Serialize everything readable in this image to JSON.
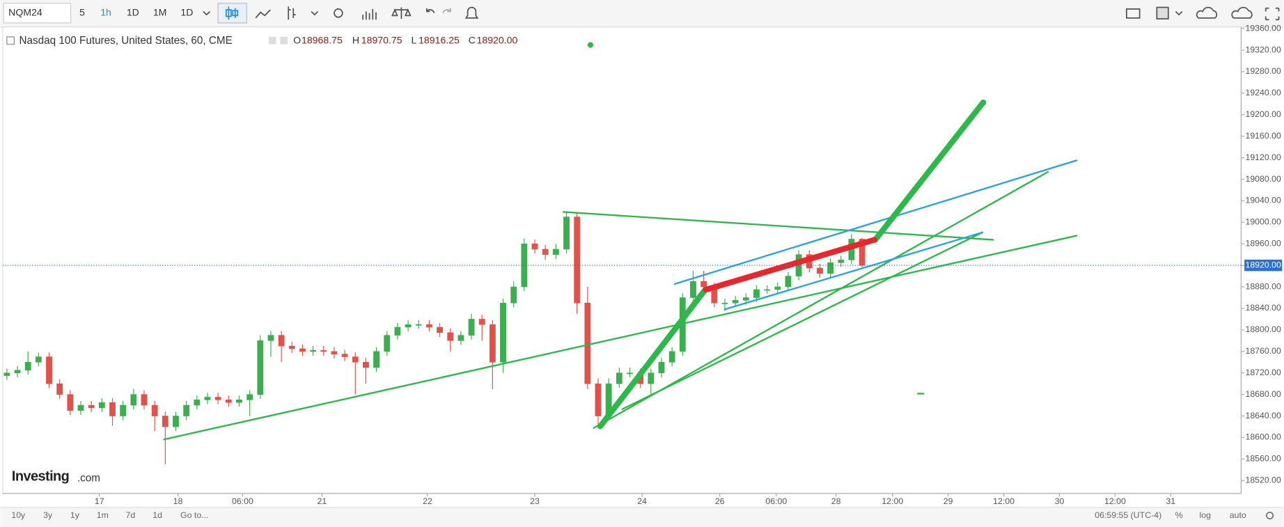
{
  "toolbar": {
    "symbol": "NQM24",
    "interval_buttons": [
      "5",
      "1h",
      "1D",
      "1M",
      "1D"
    ]
  },
  "legend": {
    "title": "Nasdaq 100 Futures, United States, 60, CME",
    "open_label": "O",
    "open": "18968.75",
    "high_label": "H",
    "high": "18970.75",
    "low_label": "L",
    "low": "18916.25",
    "close_label": "C",
    "close": "18920.00"
  },
  "brand": {
    "name": "Investing",
    "suffix": ".com"
  },
  "bottom_bar": {
    "ranges": [
      "10y",
      "3y",
      "1y",
      "1m",
      "7d",
      "1d"
    ],
    "goto": "Go to...",
    "clock": "06:59:55 (UTC-4)",
    "percent": "%",
    "log": "log",
    "auto": "auto"
  },
  "chart_data": {
    "type": "candlestick",
    "up_color": "#3cae4f",
    "down_color": "#e0534a",
    "open": [
      18715,
      18720,
      18725,
      18740,
      18750,
      18700,
      18680,
      18650,
      18660,
      18655,
      18665,
      18640,
      18660,
      18680,
      18660,
      18640,
      18620,
      18640,
      18660,
      18670,
      18675,
      18670,
      18665,
      18670,
      18680,
      18780,
      18790,
      18770,
      18765,
      18760,
      18762,
      18760,
      18755,
      18750,
      18740,
      18730,
      18760,
      18790,
      18805,
      18810,
      18810,
      18805,
      18795,
      18780,
      18790,
      18820,
      18810,
      18740,
      18850,
      18880,
      18960,
      18950,
      18940,
      18950,
      19010,
      18850,
      18700,
      18640,
      18700,
      18720,
      18720,
      18700,
      18720,
      18740,
      18760,
      18860,
      18890,
      18880,
      18850,
      18850,
      18855,
      18860,
      18875,
      18875,
      18880,
      18900,
      18940,
      18915,
      18905,
      18925,
      18930,
      18968.75
    ],
    "high": [
      18728,
      18733,
      18760,
      18758,
      18758,
      18708,
      18688,
      18668,
      18668,
      18673,
      18673,
      18668,
      18690,
      18688,
      18668,
      18648,
      18648,
      18668,
      18678,
      18683,
      18683,
      18678,
      18678,
      18688,
      18790,
      18798,
      18798,
      18778,
      18773,
      18770,
      18770,
      18768,
      18763,
      18758,
      18748,
      18768,
      18798,
      18813,
      18818,
      18818,
      18818,
      18813,
      18803,
      18798,
      18830,
      18828,
      18818,
      18858,
      18890,
      18970,
      18968,
      18958,
      18960,
      19020,
      19018,
      18880,
      18710,
      18710,
      18730,
      18730,
      18728,
      18728,
      18748,
      18768,
      18868,
      18910,
      18910,
      18888,
      18858,
      18863,
      18868,
      18883,
      18883,
      18888,
      18908,
      18948,
      18948,
      18923,
      18933,
      18938,
      18978,
      18970.75
    ],
    "low": [
      18707,
      18712,
      18717,
      18732,
      18692,
      18672,
      18642,
      18642,
      18647,
      18647,
      18622,
      18632,
      18652,
      18652,
      18612,
      18550,
      18612,
      18632,
      18652,
      18662,
      18662,
      18657,
      18657,
      18640,
      18672,
      18750,
      18740,
      18757,
      18752,
      18752,
      18752,
      18747,
      18742,
      18680,
      18700,
      18722,
      18752,
      18782,
      18797,
      18802,
      18797,
      18787,
      18760,
      18772,
      18782,
      18780,
      18690,
      18720,
      18842,
      18872,
      18942,
      18930,
      18932,
      18942,
      18830,
      18690,
      18620,
      18632,
      18692,
      18712,
      18692,
      18680,
      18712,
      18732,
      18752,
      18852,
      18872,
      18842,
      18835,
      18842,
      18847,
      18852,
      18867,
      18867,
      18872,
      18892,
      18907,
      18897,
      18897,
      18917,
      18922,
      18916.25
    ],
    "close": [
      18720,
      18725,
      18740,
      18750,
      18700,
      18680,
      18650,
      18660,
      18655,
      18665,
      18640,
      18660,
      18680,
      18660,
      18640,
      18620,
      18640,
      18660,
      18670,
      18675,
      18670,
      18665,
      18670,
      18680,
      18780,
      18790,
      18770,
      18765,
      18760,
      18762,
      18760,
      18755,
      18750,
      18740,
      18730,
      18760,
      18790,
      18805,
      18810,
      18810,
      18805,
      18795,
      18780,
      18790,
      18820,
      18810,
      18740,
      18850,
      18880,
      18960,
      18950,
      18940,
      18950,
      19010,
      18850,
      18700,
      18640,
      18700,
      18720,
      18720,
      18700,
      18720,
      18740,
      18760,
      18860,
      18890,
      18880,
      18850,
      18850,
      18855,
      18860,
      18875,
      18875,
      18880,
      18900,
      18940,
      18915,
      18905,
      18925,
      18930,
      18968.75,
      18920
    ],
    "xlim": [
      -0.39,
      116.9
    ],
    "xticks": [
      {
        "value": 8.76,
        "label": "17"
      },
      {
        "value": 16.2,
        "label": "18"
      },
      {
        "value": 22.33,
        "label": "06:00"
      },
      {
        "value": 29.84,
        "label": "21"
      },
      {
        "value": 39.84,
        "label": "22"
      },
      {
        "value": 50,
        "label": "23"
      },
      {
        "value": 60.16,
        "label": "24"
      },
      {
        "value": 67.52,
        "label": "26"
      },
      {
        "value": 72.87,
        "label": "06:00"
      },
      {
        "value": 78.53,
        "label": "28"
      },
      {
        "value": 83.88,
        "label": "12:00"
      },
      {
        "value": 89.15,
        "label": "29"
      },
      {
        "value": 94.42,
        "label": "12:00"
      },
      {
        "value": 99.69,
        "label": "30"
      },
      {
        "value": 104.96,
        "label": "12:00"
      },
      {
        "value": 110.23,
        "label": "31"
      }
    ],
    "ylim": [
      18496,
      19363
    ],
    "yticks": [
      {
        "value": 18520,
        "label": "18520.00"
      },
      {
        "value": 18560,
        "label": "18560.00"
      },
      {
        "value": 18600,
        "label": "18600.00"
      },
      {
        "value": 18640,
        "label": "18640.00"
      },
      {
        "value": 18680,
        "label": "18680.00"
      },
      {
        "value": 18720,
        "label": "18720.00"
      },
      {
        "value": 18760,
        "label": "18760.00"
      },
      {
        "value": 18800,
        "label": "18800.00"
      },
      {
        "value": 18840,
        "label": "18840.00"
      },
      {
        "value": 18880,
        "label": "18880.00"
      },
      {
        "value": 18920,
        "label": "18920.00"
      },
      {
        "value": 18960,
        "label": "18960.00"
      },
      {
        "value": 19000,
        "label": "19000.00"
      },
      {
        "value": 19040,
        "label": "19040.00"
      },
      {
        "value": 19080,
        "label": "19080.00"
      },
      {
        "value": 19120,
        "label": "19120.00"
      },
      {
        "value": 19160,
        "label": "19160.00"
      },
      {
        "value": 19200,
        "label": "19200.00"
      },
      {
        "value": 19240,
        "label": "19240.00"
      },
      {
        "value": 19280,
        "label": "19280.00"
      },
      {
        "value": 19320,
        "label": "19320.00"
      },
      {
        "value": 19360,
        "label": "19360.00"
      }
    ],
    "last_price": {
      "value": 18920,
      "label": "18920.00"
    }
  }
}
